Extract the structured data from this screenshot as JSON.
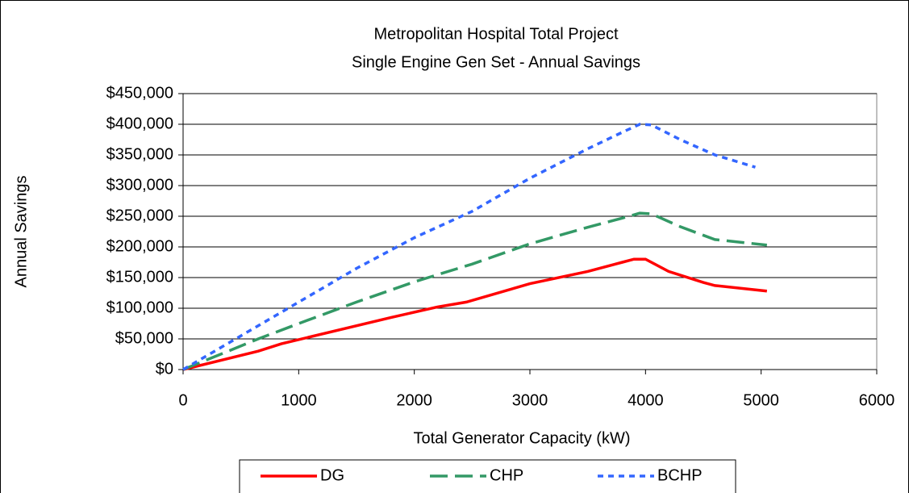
{
  "chart_data": {
    "type": "line",
    "title": "Metropolitan Hospital Total Project",
    "subtitle": "Single Engine Gen Set - Annual Savings",
    "x_label": "Total Generator Capacity (kW)",
    "y_label": "Annual Savings",
    "xlim": [
      0,
      6000
    ],
    "xticks": [
      0,
      1000,
      2000,
      3000,
      4000,
      5000,
      6000
    ],
    "ylim": [
      0,
      450000
    ],
    "yticks": [
      {
        "value": 0,
        "label": "$0"
      },
      {
        "value": 50000,
        "label": "$50,000"
      },
      {
        "value": 100000,
        "label": "$100,000"
      },
      {
        "value": 150000,
        "label": "$150,000"
      },
      {
        "value": 200000,
        "label": "$200,000"
      },
      {
        "value": 250000,
        "label": "$250,000"
      },
      {
        "value": 300000,
        "label": "$300,000"
      },
      {
        "value": 350000,
        "label": "$350,000"
      },
      {
        "value": 400000,
        "label": "$400,000"
      },
      {
        "value": 450000,
        "label": "$450,000"
      }
    ],
    "grid": true,
    "legend": "bottom",
    "series": [
      {
        "name": "DG",
        "color": "#ff0000",
        "dash": "solid",
        "x": [
          0,
          650,
          850,
          1800,
          2200,
          2450,
          3000,
          3500,
          3800,
          3900,
          4000,
          4200,
          4500,
          4600,
          5050
        ],
        "values": [
          0,
          30000,
          42000,
          85000,
          102000,
          110000,
          140000,
          160000,
          175000,
          180000,
          180000,
          160000,
          142000,
          137000,
          128000
        ]
      },
      {
        "name": "CHP",
        "color": "#339966",
        "dash": "dashed",
        "x": [
          0,
          650,
          1000,
          1500,
          2000,
          2500,
          3000,
          3500,
          3800,
          3950,
          4050,
          4300,
          4600,
          5050
        ],
        "values": [
          0,
          50000,
          75000,
          110000,
          143000,
          172000,
          205000,
          232000,
          247000,
          255000,
          254000,
          233000,
          212000,
          203000
        ]
      },
      {
        "name": "BCHP",
        "color": "#3366ff",
        "dash": "dotted",
        "x": [
          0,
          500,
          1000,
          1500,
          2000,
          2500,
          3000,
          3500,
          3800,
          3950,
          4050,
          4300,
          4600,
          4950
        ],
        "values": [
          0,
          55000,
          110000,
          165000,
          215000,
          258000,
          312000,
          360000,
          387000,
          400000,
          399000,
          375000,
          350000,
          330000
        ]
      }
    ]
  }
}
